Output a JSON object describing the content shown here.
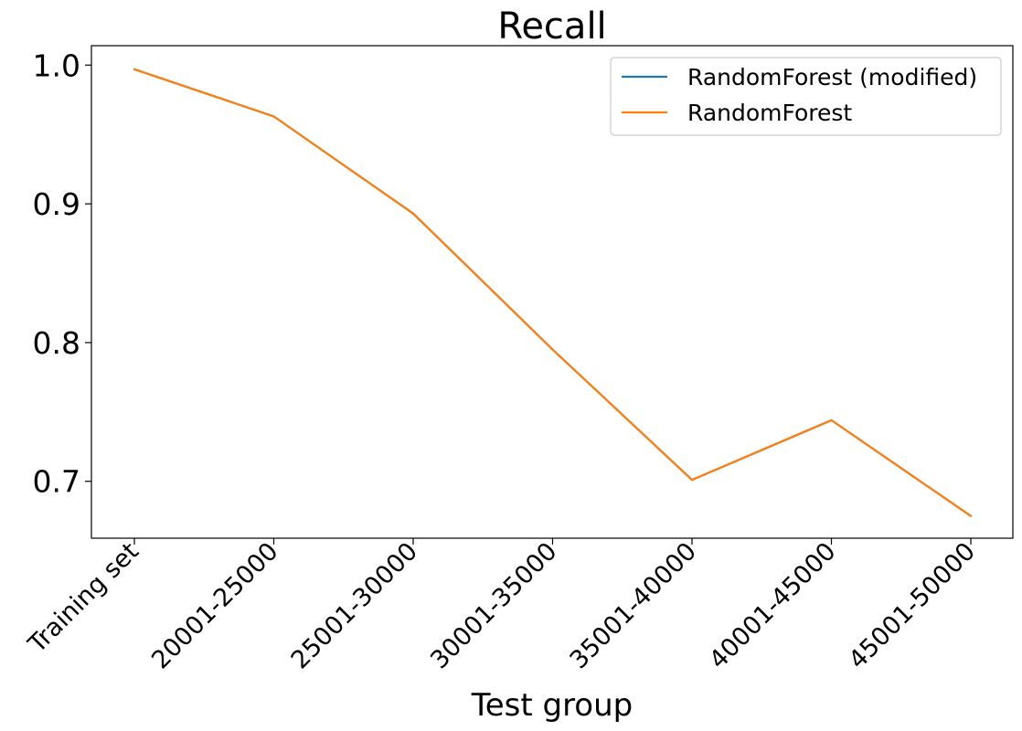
{
  "chart_data": {
    "type": "line",
    "title": "Recall",
    "xlabel": "Test group",
    "ylabel": "",
    "categories": [
      "Training set",
      "20001-25000",
      "25001-30000",
      "30001-35000",
      "35001-40000",
      "40001-45000",
      "45001-50000"
    ],
    "yticks": [
      "0.7",
      "0.8",
      "0.9",
      "1.0"
    ],
    "ylim": [
      0.659,
      1.014
    ],
    "grid": false,
    "legend_position": "top-right",
    "series": [
      {
        "name": "RandomForest (modified)",
        "color": "#1f77b4",
        "values": [
          0.997,
          0.963,
          0.893,
          0.795,
          0.701,
          0.744,
          0.675
        ]
      },
      {
        "name": "RandomForest",
        "color": "#ff7f0e",
        "values": [
          0.997,
          0.963,
          0.893,
          0.795,
          0.701,
          0.744,
          0.675
        ]
      }
    ]
  }
}
